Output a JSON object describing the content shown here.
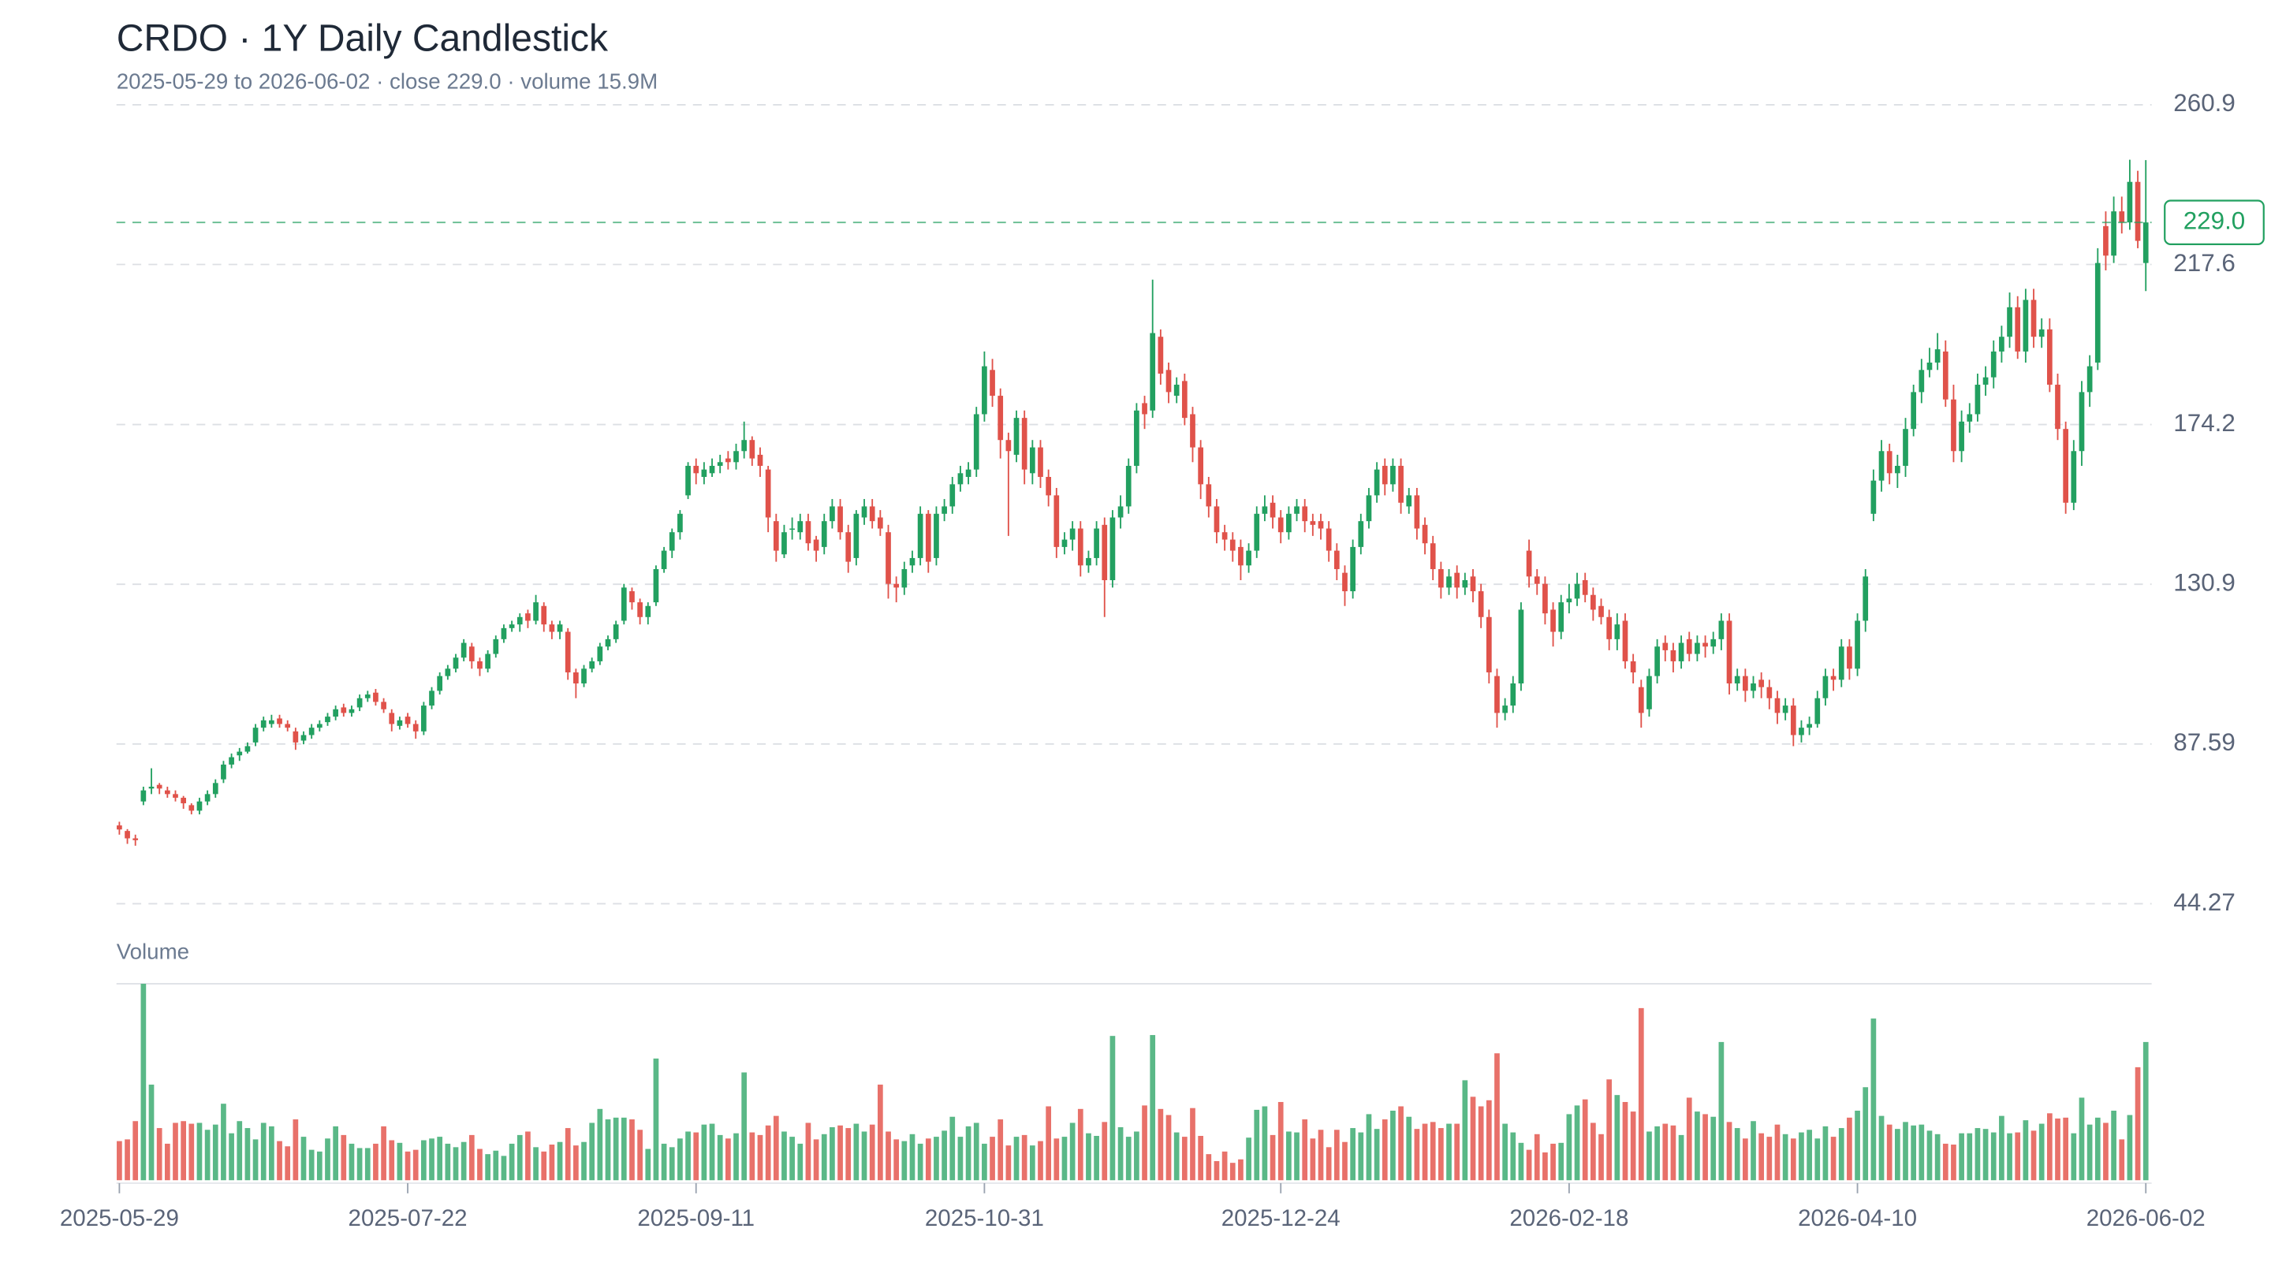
{
  "chart_data": {
    "type": "candlestick",
    "title": "CRDO · 1Y Daily Candlestick",
    "subtitle": "2025-05-29 to 2026-06-02 · close 229.0 · volume 15.9M",
    "volume_label": "Volume",
    "x": [
      "2025-05-29",
      "2025-05-30",
      "2025-06-02",
      "2025-06-03",
      "2025-06-04",
      "2025-06-05",
      "2025-06-06",
      "2025-06-09",
      "2025-06-10",
      "2025-06-11",
      "2025-06-12",
      "2025-06-13",
      "2025-06-16",
      "2025-06-17",
      "2025-06-18",
      "2025-06-20",
      "2025-06-23",
      "2025-06-24",
      "2025-06-25",
      "2025-06-26",
      "2025-06-27",
      "2025-06-30",
      "2025-07-01",
      "2025-07-02",
      "2025-07-03",
      "2025-07-07",
      "2025-07-08",
      "2025-07-09",
      "2025-07-10",
      "2025-07-11",
      "2025-07-14",
      "2025-07-15",
      "2025-07-16",
      "2025-07-17",
      "2025-07-18",
      "2025-07-21",
      "2025-07-22",
      "2025-07-23",
      "2025-07-24",
      "2025-07-25",
      "2025-07-28",
      "2025-07-29",
      "2025-07-30",
      "2025-07-31",
      "2025-08-01",
      "2025-08-04",
      "2025-08-05",
      "2025-08-06",
      "2025-08-07",
      "2025-08-08",
      "2025-08-11",
      "2025-08-12",
      "2025-08-13",
      "2025-08-14",
      "2025-08-15",
      "2025-08-18",
      "2025-08-19",
      "2025-08-20",
      "2025-08-21",
      "2025-08-22",
      "2025-08-25",
      "2025-08-26",
      "2025-08-27",
      "2025-08-28",
      "2025-08-29",
      "2025-09-02",
      "2025-09-03",
      "2025-09-04",
      "2025-09-05",
      "2025-09-08",
      "2025-09-09",
      "2025-09-10",
      "2025-09-11",
      "2025-09-12",
      "2025-09-15",
      "2025-09-16",
      "2025-09-17",
      "2025-09-18",
      "2025-09-19",
      "2025-09-22",
      "2025-09-23",
      "2025-09-24",
      "2025-09-25",
      "2025-09-26",
      "2025-09-29",
      "2025-09-30",
      "2025-10-01",
      "2025-10-02",
      "2025-10-03",
      "2025-10-06",
      "2025-10-07",
      "2025-10-08",
      "2025-10-09",
      "2025-10-10",
      "2025-10-13",
      "2025-10-14",
      "2025-10-15",
      "2025-10-16",
      "2025-10-17",
      "2025-10-20",
      "2025-10-21",
      "2025-10-22",
      "2025-10-23",
      "2025-10-24",
      "2025-10-27",
      "2025-10-28",
      "2025-10-29",
      "2025-10-30",
      "2025-10-31",
      "2025-11-03",
      "2025-11-04",
      "2025-11-05",
      "2025-11-06",
      "2025-11-07",
      "2025-11-10",
      "2025-11-11",
      "2025-11-12",
      "2025-11-13",
      "2025-11-14",
      "2025-11-17",
      "2025-11-18",
      "2025-11-19",
      "2025-11-20",
      "2025-11-21",
      "2025-11-24",
      "2025-11-25",
      "2025-11-26",
      "2025-11-28",
      "2025-12-01",
      "2025-12-02",
      "2025-12-03",
      "2025-12-04",
      "2025-12-05",
      "2025-12-08",
      "2025-12-09",
      "2025-12-10",
      "2025-12-11",
      "2025-12-12",
      "2025-12-15",
      "2025-12-16",
      "2025-12-17",
      "2025-12-18",
      "2025-12-19",
      "2025-12-22",
      "2025-12-23",
      "2025-12-24",
      "2025-12-26",
      "2025-12-29",
      "2025-12-30",
      "2025-12-31",
      "2026-01-02",
      "2026-01-05",
      "2026-01-06",
      "2026-01-07",
      "2026-01-08",
      "2026-01-09",
      "2026-01-12",
      "2026-01-13",
      "2026-01-14",
      "2026-01-15",
      "2026-01-16",
      "2026-01-20",
      "2026-01-21",
      "2026-01-22",
      "2026-01-23",
      "2026-01-26",
      "2026-01-27",
      "2026-01-28",
      "2026-01-29",
      "2026-01-30",
      "2026-02-02",
      "2026-02-03",
      "2026-02-04",
      "2026-02-05",
      "2026-02-06",
      "2026-02-09",
      "2026-02-10",
      "2026-02-11",
      "2026-02-12",
      "2026-02-13",
      "2026-02-17",
      "2026-02-18",
      "2026-02-19",
      "2026-02-20",
      "2026-02-23",
      "2026-02-24",
      "2026-02-25",
      "2026-02-26",
      "2026-02-27",
      "2026-03-02",
      "2026-03-03",
      "2026-03-04",
      "2026-03-05",
      "2026-03-06",
      "2026-03-09",
      "2026-03-10",
      "2026-03-11",
      "2026-03-12",
      "2026-03-13",
      "2026-03-16",
      "2026-03-17",
      "2026-03-18",
      "2026-03-19",
      "2026-03-20",
      "2026-03-23",
      "2026-03-24",
      "2026-03-25",
      "2026-03-26",
      "2026-03-27",
      "2026-03-30",
      "2026-03-31",
      "2026-04-01",
      "2026-04-02",
      "2026-04-06",
      "2026-04-07",
      "2026-04-08",
      "2026-04-09",
      "2026-04-10",
      "2026-04-13",
      "2026-04-14",
      "2026-04-15",
      "2026-04-16",
      "2026-04-17",
      "2026-04-20",
      "2026-04-21",
      "2026-04-22",
      "2026-04-23",
      "2026-04-24",
      "2026-04-27",
      "2026-04-28",
      "2026-04-29",
      "2026-04-30",
      "2026-05-01",
      "2026-05-04",
      "2026-05-05",
      "2026-05-06",
      "2026-05-07",
      "2026-05-08",
      "2026-05-11",
      "2026-05-12",
      "2026-05-13",
      "2026-05-14",
      "2026-05-15",
      "2026-05-18",
      "2026-05-19",
      "2026-05-20",
      "2026-05-21",
      "2026-05-22",
      "2026-05-26",
      "2026-05-27",
      "2026-05-28",
      "2026-05-29",
      "2026-06-01",
      "2026-06-02"
    ],
    "open": [
      65.5,
      64,
      62,
      72,
      75.5,
      76.5,
      75,
      74,
      73,
      71,
      69.5,
      72,
      74,
      78,
      82,
      84.5,
      85.5,
      88,
      92,
      93,
      94.5,
      93,
      91,
      88.5,
      90,
      92,
      93.5,
      95,
      97.5,
      96,
      97.5,
      100,
      101.5,
      99,
      96,
      92.5,
      95,
      93,
      91,
      98,
      102,
      106,
      108,
      111,
      114,
      110,
      108,
      112,
      116,
      119,
      120,
      123,
      121,
      125,
      120,
      118,
      118,
      107,
      104,
      108,
      110,
      114,
      116,
      121,
      129,
      126,
      122,
      126,
      135,
      140,
      145,
      155,
      163,
      160,
      161,
      163,
      165,
      164,
      167,
      170,
      166,
      162,
      148,
      139,
      146,
      145,
      148,
      143,
      141,
      148,
      152,
      145,
      138,
      149,
      152,
      149,
      145,
      131,
      130,
      136,
      138,
      150,
      138,
      150,
      152,
      158,
      160,
      162,
      177,
      189,
      182,
      170,
      166,
      176,
      161,
      168,
      160,
      155,
      141,
      143,
      146,
      136,
      138,
      147,
      132,
      149,
      152,
      163,
      180,
      178,
      198,
      189,
      182,
      186,
      177,
      168,
      158,
      152,
      145,
      143,
      141,
      136,
      140,
      150,
      153,
      149,
      145,
      150,
      152,
      148,
      148,
      146,
      140,
      134,
      129,
      141,
      148,
      155,
      163,
      158,
      163,
      152,
      155,
      147,
      142,
      135,
      130,
      134,
      130,
      133,
      129,
      122,
      106,
      96,
      98,
      104,
      140,
      133,
      131,
      124,
      118,
      126,
      127,
      132,
      128,
      125,
      122,
      116,
      121,
      110,
      103,
      97,
      106,
      115,
      113,
      110,
      116,
      112,
      115,
      114,
      116,
      121,
      104,
      106,
      102,
      105,
      103,
      100,
      96,
      98,
      90,
      92,
      93,
      100,
      106,
      105,
      114,
      108,
      121,
      150,
      159,
      167,
      161,
      163,
      173,
      183,
      189,
      191,
      194,
      181,
      167,
      175,
      177,
      185,
      187,
      194,
      198,
      206,
      194,
      208,
      198,
      200,
      185,
      173,
      153,
      167,
      183,
      191,
      228,
      220,
      232,
      229,
      240,
      218
    ],
    "high": [
      66.5,
      64.5,
      63,
      76,
      81,
      77,
      76,
      75,
      73.5,
      71.5,
      73,
      75,
      78,
      83,
      85,
      86.5,
      88,
      93,
      95,
      95.5,
      95.5,
      94,
      92,
      91,
      93,
      94,
      96,
      98,
      98.5,
      98,
      101,
      102,
      102.5,
      100,
      97,
      95,
      96,
      94,
      99,
      103,
      107,
      109,
      112,
      116,
      115,
      111,
      113,
      117,
      120,
      121,
      123,
      124,
      128,
      126,
      121,
      121,
      119,
      108,
      109,
      111,
      115,
      117,
      121,
      131,
      130,
      127,
      126,
      136,
      141,
      146,
      151,
      164,
      165,
      164,
      165,
      166,
      167,
      169,
      175,
      171,
      168,
      163,
      150,
      147,
      149,
      150,
      150,
      144,
      150,
      154,
      154,
      147,
      151,
      154,
      154,
      151,
      147,
      133,
      137,
      140,
      152,
      151,
      152,
      154,
      160,
      163,
      164,
      179,
      194,
      192,
      184,
      172,
      178,
      178,
      170,
      170,
      162,
      157,
      145,
      148,
      148,
      140,
      148,
      149,
      151,
      155,
      165,
      180,
      182,
      213.5,
      200,
      191,
      187,
      188,
      179,
      170,
      160,
      154,
      147,
      145,
      143,
      142,
      152,
      155,
      155,
      151,
      152,
      154,
      154,
      150,
      150,
      148,
      142,
      136,
      143,
      150,
      157,
      164,
      165,
      165,
      165,
      157,
      157,
      149,
      144,
      137,
      135,
      136,
      134,
      135,
      131,
      124,
      108,
      100,
      106,
      126,
      143,
      135,
      133,
      126,
      128,
      131,
      134,
      134,
      130,
      127,
      124,
      123,
      123,
      112,
      105,
      108,
      116,
      117,
      115,
      117,
      118,
      117,
      117,
      118,
      123,
      123,
      108,
      108,
      106,
      107,
      105,
      102,
      100,
      100,
      94,
      95,
      102,
      108,
      108,
      116,
      116,
      123,
      135,
      162,
      170,
      169,
      166,
      176,
      185,
      192,
      195,
      199,
      197,
      185,
      178,
      180,
      188,
      190,
      197,
      201,
      210,
      209,
      211,
      211,
      203,
      203,
      188,
      175,
      170,
      186,
      193,
      222,
      232,
      236,
      236,
      246,
      243,
      245.9
    ],
    "low": [
      63,
      60.5,
      60,
      71,
      74,
      74,
      73,
      72,
      70,
      68.5,
      68.5,
      71,
      73,
      77,
      81,
      83,
      85,
      87,
      91,
      92,
      92,
      91,
      86,
      87.5,
      89,
      91,
      92.5,
      94,
      95,
      95,
      96.5,
      99,
      98,
      96,
      91,
      91.5,
      92,
      89,
      90,
      97,
      101,
      105,
      107,
      110,
      108,
      106,
      107,
      111,
      115,
      118,
      118,
      119,
      120,
      118,
      116,
      116,
      105,
      100,
      103,
      107,
      109,
      113,
      115,
      120,
      124,
      120,
      120,
      125,
      134,
      138,
      143,
      154,
      158,
      158,
      160,
      161,
      162,
      162,
      165,
      163,
      160,
      145,
      137,
      138,
      143,
      143,
      140,
      137,
      139,
      146,
      143,
      134,
      136,
      147,
      146,
      144,
      127,
      126,
      128,
      134,
      136,
      134,
      136,
      148,
      150,
      156,
      158,
      160,
      175,
      179,
      165,
      144,
      164,
      158,
      158,
      157,
      152,
      138,
      139,
      140,
      133,
      134,
      136,
      122,
      130,
      146,
      150,
      161,
      173,
      176,
      185,
      180,
      180,
      174,
      164,
      154,
      149,
      142,
      140,
      137,
      132,
      134,
      138,
      148,
      146,
      142,
      143,
      148,
      145,
      144,
      143,
      137,
      132,
      125,
      127,
      139,
      146,
      153,
      155,
      156,
      150,
      150,
      143,
      139,
      132,
      127,
      128,
      127,
      128,
      126,
      119,
      104,
      92,
      94,
      96,
      102,
      130,
      128,
      120,
      114,
      116,
      123,
      125,
      126,
      121,
      120,
      113,
      113,
      108,
      104,
      92,
      95,
      104,
      110,
      107,
      108,
      110,
      110,
      111,
      112,
      113,
      101,
      102,
      99,
      100,
      100,
      97,
      93,
      94,
      87,
      88,
      90,
      92,
      98,
      102,
      103,
      105,
      106,
      118,
      148,
      156,
      158,
      157,
      160,
      171,
      180,
      187,
      189,
      179,
      164,
      164,
      172,
      175,
      182,
      184,
      191,
      195,
      192,
      191,
      195,
      195,
      183,
      170,
      150,
      151,
      163,
      179,
      189,
      216,
      218,
      226,
      227,
      222,
      210.4
    ],
    "close": [
      64.4,
      62,
      61.5,
      75,
      76,
      75.5,
      74,
      73,
      71.5,
      69.5,
      72,
      74,
      77,
      82,
      84,
      85.5,
      87,
      92,
      94,
      94,
      93,
      92,
      88,
      90,
      92,
      93,
      95,
      97,
      96,
      97,
      100,
      101,
      99,
      97,
      93,
      94,
      93,
      91,
      98,
      102,
      106,
      108,
      111,
      115,
      110,
      108,
      112,
      116,
      119,
      120,
      122,
      121,
      126,
      120,
      118,
      120,
      107,
      104,
      108,
      110,
      114,
      116,
      120,
      130,
      126,
      122,
      125,
      135,
      140,
      145,
      150,
      163,
      161,
      162,
      163,
      164,
      164,
      167,
      170,
      165,
      163,
      149,
      140,
      145,
      146,
      148,
      142,
      140,
      148,
      152,
      145,
      137,
      150,
      152,
      148,
      146,
      131,
      130,
      135,
      138,
      150,
      137,
      150,
      152,
      158,
      161,
      162,
      177,
      190,
      182,
      170,
      167,
      176,
      162,
      168,
      160,
      155,
      141,
      143,
      146,
      136,
      138,
      146,
      132,
      149,
      152,
      163,
      178,
      177,
      199,
      188,
      183,
      185,
      176,
      168,
      158,
      152,
      145,
      143,
      140,
      136,
      140,
      150,
      152,
      149,
      145,
      150,
      152,
      148,
      147,
      146,
      140,
      135,
      129,
      141,
      148,
      155,
      162,
      158,
      163,
      153,
      155,
      146,
      142,
      135,
      130,
      133,
      130,
      132,
      129,
      122,
      107,
      96,
      98,
      104,
      124,
      133,
      131,
      123,
      118,
      126,
      127,
      131,
      128,
      124,
      122,
      116,
      120,
      110,
      107,
      96,
      106,
      114,
      113,
      110,
      115,
      112,
      115,
      114,
      116,
      121,
      104,
      106,
      102,
      104,
      103,
      100,
      96,
      98,
      90,
      92,
      93,
      100,
      106,
      105,
      114,
      108,
      121,
      133,
      159,
      167,
      161,
      163,
      173,
      183,
      189,
      191,
      194.6,
      181,
      167,
      175,
      177,
      185,
      187,
      194,
      198,
      206,
      194,
      208,
      198,
      200,
      185,
      173,
      153,
      167,
      183,
      190,
      218,
      220,
      232,
      229,
      240,
      224,
      229
    ],
    "volume": [
      4.5,
      4.7,
      6.8,
      22.6,
      11.0,
      6.0,
      4.2,
      6.6,
      6.8,
      6.5,
      6.6,
      5.8,
      6.4,
      8.8,
      5.4,
      6.8,
      6.0,
      4.7,
      6.6,
      6.2,
      4.5,
      3.9,
      7.0,
      5.0,
      3.5,
      3.3,
      4.8,
      6.2,
      5.2,
      4.2,
      3.7,
      3.7,
      4.2,
      6.2,
      4.6,
      4.3,
      3.3,
      3.5,
      4.6,
      4.8,
      5.0,
      4.2,
      3.8,
      4.4,
      5.2,
      3.6,
      3.0,
      3.4,
      2.8,
      4.2,
      5.2,
      5.6,
      3.8,
      3.3,
      4.1,
      4.4,
      6.0,
      4.0,
      4.4,
      6.6,
      8.2,
      7.0,
      7.2,
      7.2,
      7.0,
      5.8,
      3.6,
      14.0,
      4.2,
      3.8,
      4.8,
      5.6,
      5.5,
      6.4,
      6.5,
      5.2,
      4.8,
      5.4,
      12.4,
      5.5,
      5.2,
      6.3,
      7.4,
      5.6,
      5.0,
      4.2,
      6.6,
      4.7,
      5.3,
      6.1,
      6.3,
      6.0,
      6.5,
      5.6,
      6.4,
      11.0,
      5.6,
      4.7,
      4.5,
      5.3,
      4.2,
      4.8,
      5.0,
      5.7,
      7.3,
      5.0,
      6.2,
      6.6,
      4.2,
      5.0,
      7.0,
      4.0,
      5.0,
      5.2,
      4.0,
      4.5,
      8.5,
      4.8,
      5.0,
      6.6,
      8.2,
      5.4,
      5.1,
      6.7,
      16.6,
      6.1,
      5.0,
      5.6,
      8.6,
      16.7,
      8.2,
      7.5,
      5.5,
      5.0,
      8.3,
      5.1,
      3.0,
      2.2,
      3.3,
      2.0,
      2.4,
      4.9,
      8.1,
      8.5,
      5.2,
      9.0,
      5.6,
      5.5,
      7.0,
      4.8,
      5.8,
      3.8,
      5.8,
      4.4,
      6.0,
      5.5,
      7.6,
      5.9,
      7.0,
      8.0,
      8.5,
      7.3,
      5.9,
      6.5,
      6.7,
      6.0,
      6.5,
      6.5,
      11.5,
      9.6,
      8.5,
      9.2,
      14.6,
      6.5,
      5.5,
      4.3,
      3.5,
      5.3,
      3.2,
      4.2,
      4.3,
      7.6,
      8.6,
      9.3,
      6.6,
      5.3,
      11.6,
      9.8,
      9.0,
      7.9,
      19.8,
      5.6,
      6.2,
      6.5,
      6.3,
      5.2,
      9.5,
      7.9,
      7.6,
      7.3,
      15.9,
      6.7,
      6.0,
      4.8,
      6.8,
      5.4,
      5.0,
      6.4,
      5.3,
      4.8,
      5.5,
      5.8,
      4.8,
      6.2,
      5.0,
      6.0,
      7.2,
      8.0,
      10.7,
      18.6,
      7.4,
      6.4,
      5.9,
      6.7,
      6.3,
      6.4,
      5.7,
      5.3,
      4.2,
      4.1,
      5.4,
      5.4,
      6.0,
      5.9,
      5.5,
      7.4,
      5.4,
      5.5,
      6.9,
      5.7,
      6.5,
      7.7,
      7.1,
      7.2,
      5.4,
      9.5,
      6.4,
      7.2,
      6.6,
      8.0,
      4.7,
      7.5,
      13.0,
      15.9
    ],
    "ylim": [
      44.27,
      260.9
    ],
    "yticks": [
      260.9,
      217.6,
      174.2,
      130.9,
      87.59,
      44.27
    ],
    "volume_ylim": [
      0,
      22.6
    ],
    "xticks": [
      "2025-05-29",
      "2025-07-22",
      "2025-09-11",
      "2025-10-31",
      "2025-12-24",
      "2026-02-18",
      "2026-04-10",
      "2026-06-02"
    ],
    "price_line": {
      "value": 229,
      "label": "229.0"
    },
    "grid": true,
    "up_color": "#22a060",
    "down_color": "#e0524a",
    "volume_up_color": "#5ab887",
    "volume_down_color": "#e8716a"
  }
}
